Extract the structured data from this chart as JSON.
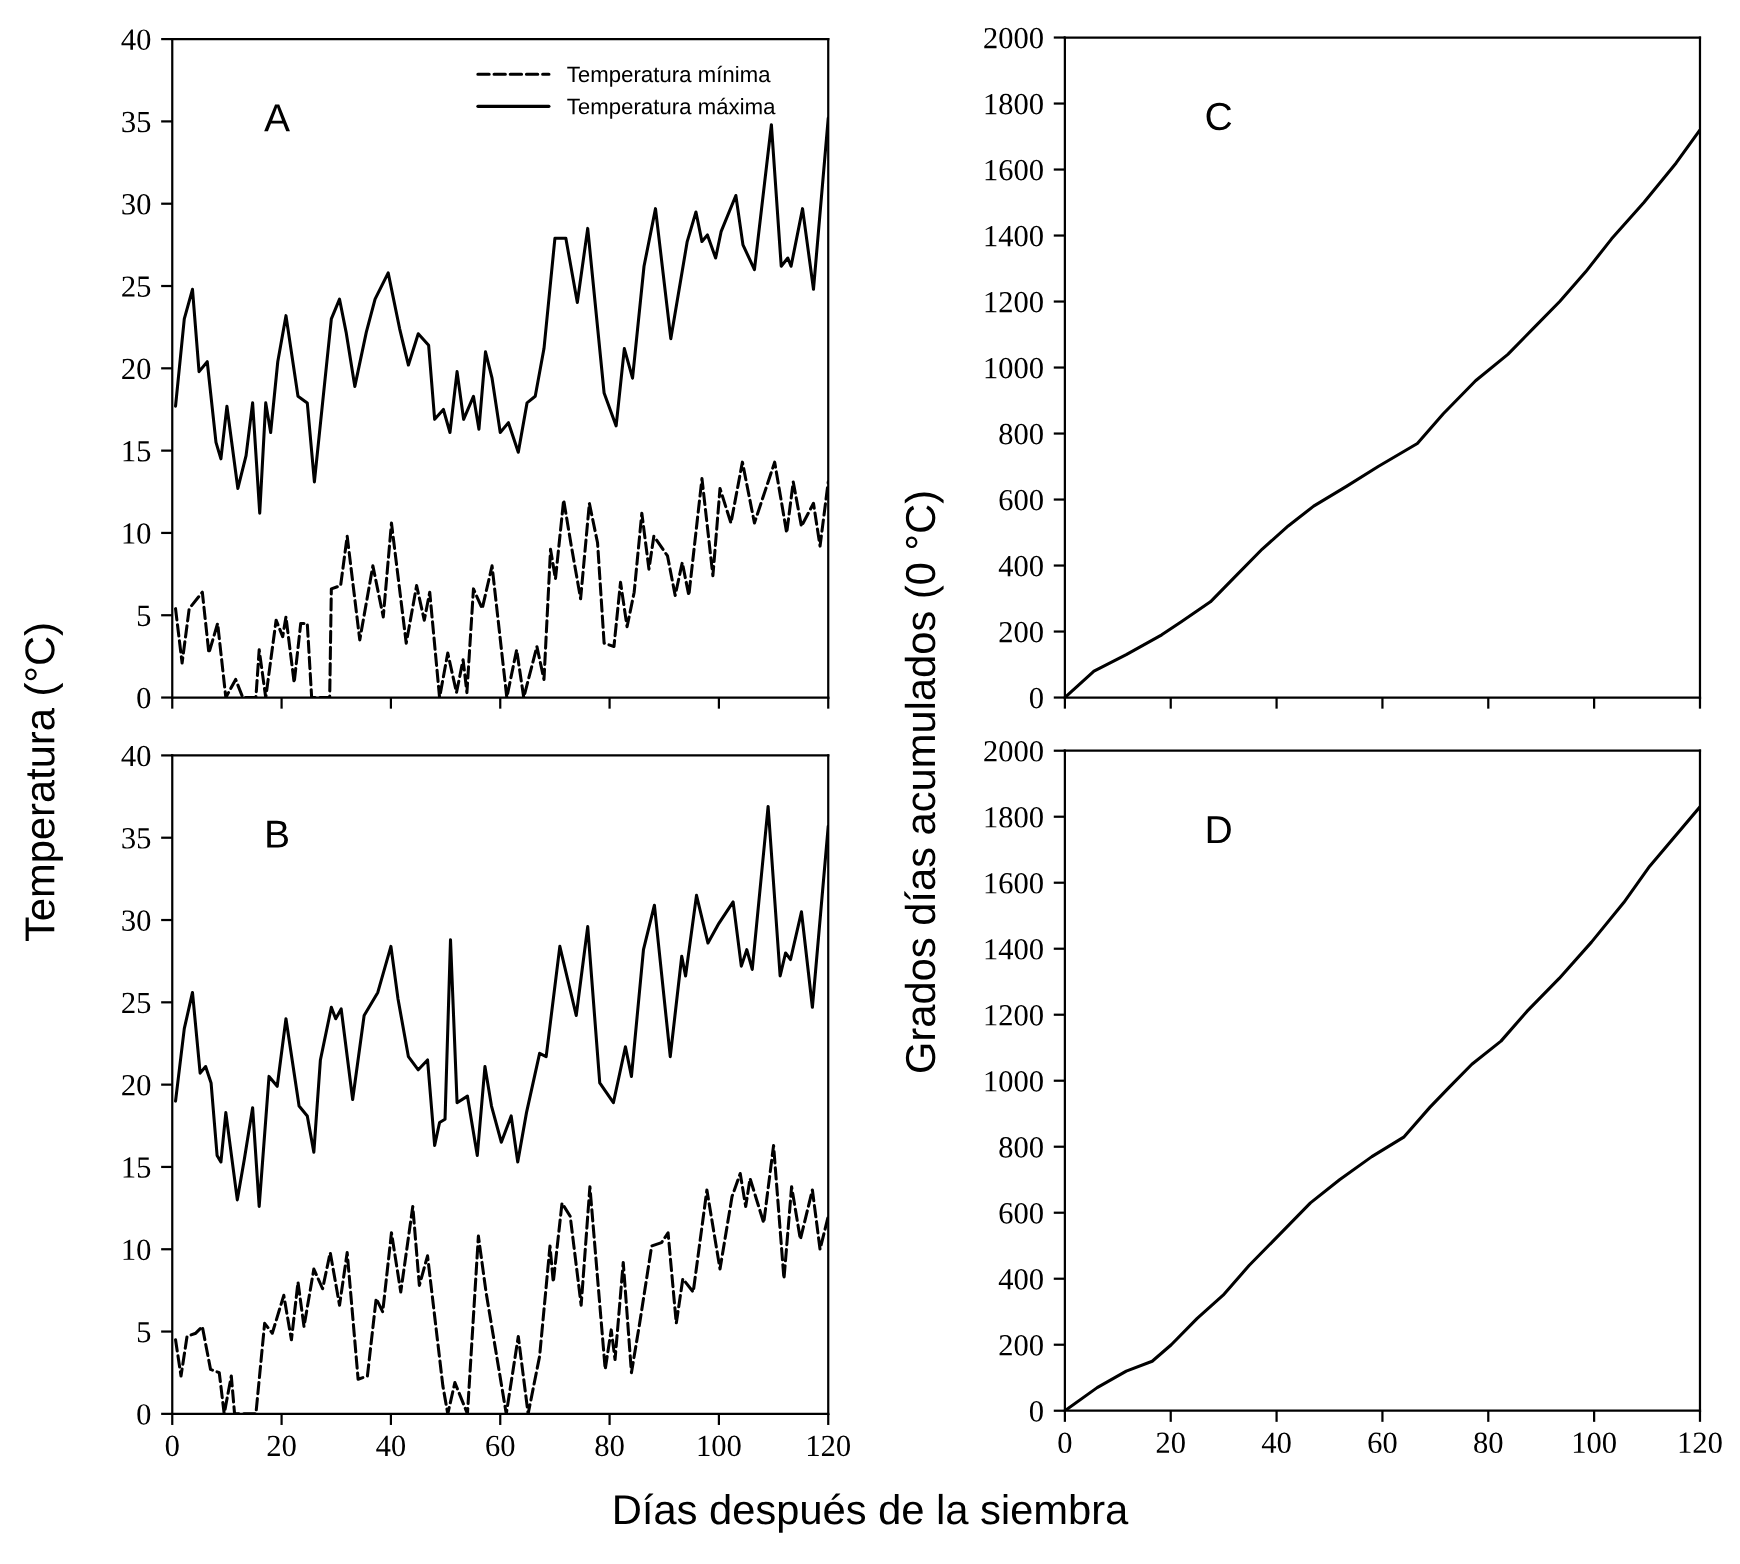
{
  "chart_data": [
    {
      "type": "line",
      "title": "A",
      "ylabel": "Temperatura (°C)",
      "xlim": [
        0,
        120
      ],
      "xticks": [
        0,
        20,
        40,
        60,
        80,
        100,
        120
      ],
      "ylim": [
        0,
        40
      ],
      "yticks": [
        0,
        5,
        10,
        15,
        20,
        25,
        30,
        35,
        40
      ],
      "tick_labels": "y",
      "legend": "top right",
      "grid": false,
      "series": [
        {
          "name": "Temperatura mínima",
          "color": "#000000",
          "line_style": "dashed",
          "x": [
            0.6,
            1.8,
            3.1,
            5.5,
            6.7,
            8.3,
            9.8,
            11.6,
            12.9,
            15.3,
            15.9,
            17.1,
            19.0,
            20.2,
            20.8,
            22.3,
            23.5,
            24.7,
            25.5,
            28.8,
            29.1,
            30.8,
            32.0,
            34.3,
            36.7,
            38.6,
            40.1,
            42.8,
            44.7,
            46.1,
            47.1,
            48.9,
            50.4,
            52.0,
            53.2,
            53.9,
            55.1,
            56.7,
            58.5,
            61.2,
            63.0,
            64.3,
            66.7,
            68.0,
            69.2,
            70.1,
            71.6,
            72.9,
            74.7,
            76.3,
            77.8,
            79.0,
            80.8,
            82.0,
            83.2,
            84.5,
            85.9,
            87.2,
            88.1,
            90.6,
            92.0,
            93.3,
            94.5,
            96.9,
            98.9,
            100.2,
            102.2,
            104.3,
            106.5,
            110.2,
            112.4,
            113.6,
            115.1,
            117.3,
            118.5,
            120
          ],
          "values": [
            5.4,
            2.1,
            5.4,
            6.4,
            2.7,
            4.5,
            0,
            1.1,
            0,
            0,
            2.9,
            0,
            4.7,
            3.7,
            4.9,
            0.9,
            4.5,
            4.5,
            0,
            0,
            6.6,
            6.8,
            9.8,
            3.5,
            8.0,
            4.9,
            10.6,
            3.3,
            6.8,
            4.7,
            6.4,
            0,
            2.7,
            0.3,
            2.3,
            0.3,
            6.6,
            5.4,
            8.0,
            0,
            2.9,
            0,
            3.1,
            1.1,
            9.0,
            7.2,
            12.0,
            9.4,
            6.0,
            11.8,
            9.4,
            3.3,
            3.1,
            7.0,
            4.3,
            6.4,
            11.2,
            7.8,
            9.8,
            8.6,
            6.2,
            8.2,
            6.2,
            13.3,
            7.4,
            12.7,
            10.6,
            14.3,
            10.6,
            14.3,
            10.0,
            13.1,
            10.4,
            11.8,
            9.2,
            13.1
          ]
        },
        {
          "name": "Temperatura máxima",
          "color": "#000000",
          "line_style": "solid",
          "x": [
            0.6,
            2.2,
            3.7,
            4.9,
            6.4,
            8.0,
            8.9,
            10.0,
            12.0,
            13.5,
            14.7,
            16.0,
            17.1,
            18.0,
            19.3,
            20.8,
            23.0,
            24.7,
            26.0,
            27.5,
            29.1,
            30.6,
            31.8,
            33.4,
            35.5,
            37.1,
            39.5,
            41.6,
            43.2,
            45.0,
            46.9,
            48.0,
            49.6,
            50.8,
            52.1,
            53.3,
            55.1,
            56.1,
            57.3,
            58.5,
            60.0,
            61.5,
            63.3,
            64.9,
            66.4,
            68.0,
            70.0,
            72.0,
            74.1,
            76.0,
            79.0,
            81.2,
            82.7,
            84.2,
            86.3,
            88.4,
            91.2,
            94.2,
            95.8,
            96.9,
            97.9,
            99.4,
            100.4,
            103.1,
            104.4,
            106.5,
            109.6,
            111.4,
            112.6,
            113.2,
            115.3,
            117.3,
            120
          ],
          "values": [
            17.7,
            23.0,
            24.8,
            19.8,
            20.4,
            15.5,
            14.5,
            17.7,
            12.7,
            14.7,
            17.9,
            11.2,
            17.9,
            16.1,
            20.4,
            23.2,
            18.3,
            17.9,
            13.1,
            17.9,
            23.0,
            24.2,
            22.2,
            18.9,
            22.2,
            24.2,
            25.8,
            22.4,
            20.2,
            22.1,
            21.4,
            16.9,
            17.5,
            16.1,
            19.8,
            16.9,
            18.3,
            16.3,
            21.0,
            19.4,
            16.1,
            16.7,
            14.9,
            17.9,
            18.3,
            21.2,
            27.9,
            27.9,
            24.0,
            28.5,
            18.5,
            16.5,
            21.2,
            19.4,
            26.2,
            29.7,
            21.8,
            27.7,
            29.5,
            27.7,
            28.1,
            26.7,
            28.3,
            30.5,
            27.5,
            26.0,
            34.8,
            26.2,
            26.7,
            26.2,
            29.7,
            24.8,
            35.2
          ]
        }
      ]
    },
    {
      "type": "line",
      "title": "C",
      "xlim": [
        0,
        120
      ],
      "xticks": [
        0,
        20,
        40,
        60,
        80,
        100,
        120
      ],
      "ylim": [
        0,
        2000
      ],
      "yticks": [
        0,
        200,
        400,
        600,
        800,
        1000,
        1200,
        1400,
        1600,
        1800,
        2000
      ],
      "tick_labels": "y",
      "grid": false,
      "series": [
        {
          "color": "#000000",
          "line_style": "solid",
          "x": [
            0,
            5.5,
            11.6,
            18.3,
            22.0,
            27.5,
            32.4,
            37.3,
            42.2,
            47.0,
            53.2,
            59.2,
            66.6,
            71.5,
            77.6,
            83.7,
            88.6,
            93.5,
            98.4,
            103.3,
            109.4,
            115.5,
            120
          ],
          "values": [
            0,
            80,
            130,
            190,
            230,
            290,
            370,
            450,
            520,
            580,
            640,
            700,
            770,
            860,
            960,
            1040,
            1120,
            1200,
            1290,
            1390,
            1500,
            1620,
            1720
          ]
        }
      ]
    },
    {
      "type": "line",
      "title": "B",
      "xlim": [
        0,
        120
      ],
      "xticks": [
        0,
        20,
        40,
        60,
        80,
        100,
        120
      ],
      "ylim": [
        0,
        40
      ],
      "yticks": [
        0,
        5,
        10,
        15,
        20,
        25,
        30,
        35,
        40
      ],
      "grid": false,
      "series": [
        {
          "color": "#000000",
          "line_style": "dashed",
          "x": [
            0.6,
            1.6,
            2.7,
            4.3,
            5.5,
            7.0,
            8.6,
            9.5,
            10.8,
            11.4,
            15.3,
            16.9,
            18.3,
            20.4,
            21.8,
            23.0,
            24.1,
            25.9,
            27.5,
            28.9,
            30.6,
            32.0,
            34.0,
            35.7,
            37.3,
            38.5,
            40.1,
            41.8,
            44.0,
            45.2,
            46.7,
            49.5,
            50.4,
            51.7,
            54.0,
            56.0,
            57.4,
            61.1,
            63.3,
            65.1,
            67.2,
            69.1,
            69.7,
            71.3,
            72.8,
            74.8,
            76.4,
            79.2,
            80.3,
            81.0,
            82.5,
            84.0,
            85.5,
            87.7,
            89.5,
            90.7,
            92.2,
            93.4,
            95.3,
            97.8,
            100.2,
            102.4,
            103.9,
            104.9,
            105.7,
            108.2,
            110.0,
            111.9,
            113.3,
            114.9,
            117.1,
            118.5,
            120
          ],
          "values": [
            4.5,
            2.3,
            4.7,
            4.9,
            5.3,
            2.7,
            2.5,
            0,
            2.3,
            0,
            0,
            5.5,
            4.9,
            7.2,
            4.5,
            8.0,
            5.3,
            8.8,
            7.6,
            9.8,
            6.6,
            9.8,
            2.1,
            2.3,
            7.0,
            6.2,
            11.0,
            7.4,
            12.6,
            7.8,
            9.6,
            1.7,
            0,
            1.9,
            0,
            10.8,
            7.4,
            0,
            4.7,
            0,
            3.5,
            10.2,
            8.0,
            12.8,
            12.0,
            6.6,
            13.8,
            2.7,
            5.1,
            3.3,
            9.2,
            2.5,
            5.5,
            10.2,
            10.4,
            11.0,
            5.5,
            8.2,
            7.4,
            13.6,
            8.8,
            13.2,
            14.6,
            12.6,
            14.3,
            11.6,
            16.3,
            8.2,
            13.8,
            10.6,
            13.6,
            10.0,
            12.0
          ]
        },
        {
          "color": "#000000",
          "line_style": "solid",
          "x": [
            0.6,
            2.2,
            3.7,
            5.1,
            6.1,
            7.1,
            8.2,
            8.9,
            9.8,
            11.9,
            13.2,
            14.7,
            15.9,
            17.7,
            19.2,
            20.8,
            23.2,
            24.7,
            25.9,
            27.1,
            29.1,
            29.9,
            30.9,
            33.0,
            35.1,
            37.6,
            40.0,
            41.3,
            43.2,
            45.0,
            46.7,
            48.0,
            48.9,
            49.9,
            50.9,
            52.1,
            54.0,
            55.8,
            57.2,
            58.4,
            60.2,
            62.0,
            63.2,
            64.8,
            67.2,
            68.4,
            70.9,
            73.9,
            76.0,
            78.2,
            80.7,
            82.9,
            84.0,
            86.2,
            88.2,
            91.1,
            93.2,
            93.9,
            95.9,
            98.0,
            100.0,
            102.6,
            104.1,
            105.1,
            106.1,
            109.0,
            111.2,
            112.2,
            113.1,
            115.1,
            117.1,
            120
          ],
          "values": [
            19.0,
            23.4,
            25.6,
            20.7,
            21.1,
            20.1,
            15.7,
            15.3,
            18.3,
            13.0,
            15.5,
            18.6,
            12.6,
            20.5,
            19.9,
            24.0,
            18.7,
            18.1,
            15.9,
            21.5,
            24.7,
            24.0,
            24.6,
            19.1,
            24.2,
            25.6,
            28.4,
            25.2,
            21.7,
            20.9,
            21.5,
            16.3,
            17.7,
            17.9,
            28.8,
            18.9,
            19.3,
            15.7,
            21.1,
            18.7,
            16.5,
            18.1,
            15.3,
            18.3,
            21.9,
            21.7,
            28.4,
            24.2,
            29.6,
            20.1,
            18.9,
            22.3,
            20.5,
            28.2,
            30.9,
            21.7,
            27.8,
            26.6,
            31.5,
            28.6,
            29.8,
            31.1,
            27.2,
            28.2,
            27.0,
            36.9,
            26.6,
            28.0,
            27.6,
            30.5,
            24.7,
            35.7
          ]
        }
      ]
    },
    {
      "type": "line",
      "title": "D",
      "ylabel": "Grados días acumulados (0 °C)",
      "xlabel": "Días después de la siembra",
      "xlim": [
        0,
        120
      ],
      "xticks": [
        0,
        20,
        40,
        60,
        80,
        100,
        120
      ],
      "ylim": [
        0,
        2000
      ],
      "yticks": [
        0,
        200,
        400,
        600,
        800,
        1000,
        1200,
        1400,
        1600,
        1800,
        2000
      ],
      "grid": false,
      "series": [
        {
          "color": "#000000",
          "line_style": "solid",
          "x": [
            0,
            6.1,
            11.6,
            16.5,
            20.1,
            25.0,
            29.9,
            34.8,
            39.7,
            46.4,
            51.9,
            58.0,
            64.1,
            69.0,
            72.6,
            76.9,
            82.4,
            87.3,
            93.4,
            99.5,
            105.6,
            110.5,
            120
          ],
          "values": [
            0,
            70,
            120,
            150,
            200,
            280,
            350,
            440,
            520,
            630,
            700,
            770,
            830,
            920,
            980,
            1050,
            1120,
            1210,
            1310,
            1420,
            1540,
            1650,
            1830
          ]
        }
      ]
    }
  ]
}
